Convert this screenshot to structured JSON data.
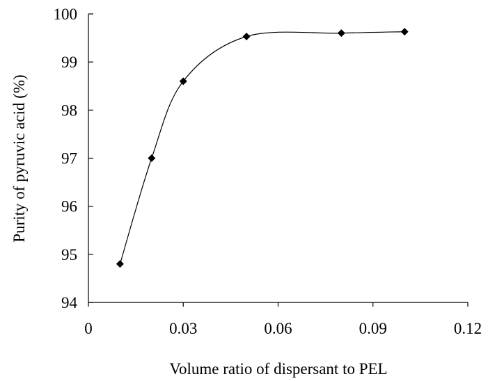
{
  "chart_data": {
    "type": "line",
    "title": "",
    "xlabel": "Volume ratio of dispersant to PEL",
    "ylabel": "Purity of pyruvic acid (%)",
    "xlim": [
      0,
      0.12
    ],
    "ylim": [
      94,
      100
    ],
    "x_ticks": [
      "0",
      "0.03",
      "0.06",
      "0.09",
      "0.12"
    ],
    "y_ticks": [
      "94",
      "95",
      "96",
      "97",
      "98",
      "99",
      "100"
    ],
    "grid": false,
    "legend": "none",
    "smooth": true,
    "marker": "diamond",
    "series": [
      {
        "x": [
          0.01,
          0.02,
          0.03,
          0.05,
          0.08,
          0.1
        ],
        "y": [
          94.8,
          97.0,
          98.6,
          99.53,
          99.6,
          99.63
        ]
      }
    ],
    "colors": {
      "line": "#000000",
      "marker": "#000000"
    }
  }
}
